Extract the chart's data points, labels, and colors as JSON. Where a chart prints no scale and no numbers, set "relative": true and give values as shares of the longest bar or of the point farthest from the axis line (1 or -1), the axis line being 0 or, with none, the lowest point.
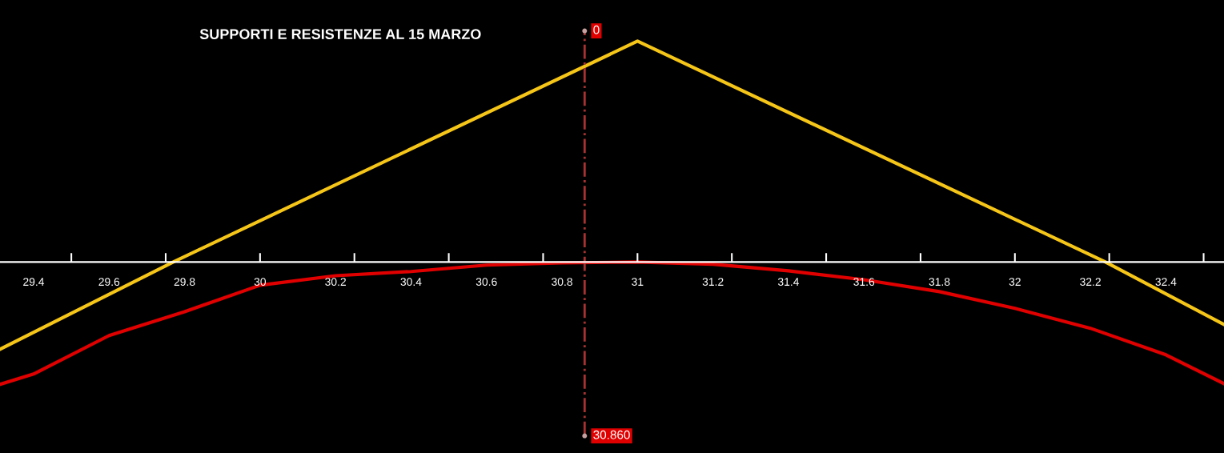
{
  "chart_data": {
    "type": "line",
    "title": "SUPPORTI E RESISTENZE AL 15 MARZO",
    "relative": true,
    "xlim": [
      29.311,
      32.554
    ],
    "xticks": [
      {
        "value": 29.4,
        "label": "29.4"
      },
      {
        "value": 29.6,
        "label": "29.6"
      },
      {
        "value": 29.8,
        "label": "29.8"
      },
      {
        "value": 30,
        "label": "30"
      },
      {
        "value": 30.2,
        "label": "30.2"
      },
      {
        "value": 30.4,
        "label": "30.4"
      },
      {
        "value": 30.6,
        "label": "30.6"
      },
      {
        "value": 30.8,
        "label": "30.8"
      },
      {
        "value": 31,
        "label": "31"
      },
      {
        "value": 31.2,
        "label": "31.2"
      },
      {
        "value": 31.4,
        "label": "31.4"
      },
      {
        "value": 31.6,
        "label": "31.6"
      },
      {
        "value": 31.8,
        "label": "31.8"
      },
      {
        "value": 32,
        "label": "32"
      },
      {
        "value": 32.2,
        "label": "32.2"
      },
      {
        "value": 32.4,
        "label": "32.4"
      },
      {
        "value": 29.5,
        "label": null
      },
      {
        "value": 29.75,
        "label": null
      },
      {
        "value": 30,
        "label": null
      },
      {
        "value": 30.25,
        "label": null
      },
      {
        "value": 30.5,
        "label": null
      },
      {
        "value": 30.75,
        "label": null
      },
      {
        "value": 31,
        "label": null
      },
      {
        "value": 31.25,
        "label": null
      },
      {
        "value": 31.5,
        "label": null
      },
      {
        "value": 31.75,
        "label": null
      },
      {
        "value": 32,
        "label": null
      },
      {
        "value": 32.25,
        "label": null
      },
      {
        "value": 32.5,
        "label": null
      }
    ],
    "series": [
      {
        "color": "#f5c518",
        "x": [
          29.311,
          29.77,
          31,
          32.24,
          32.554
        ],
        "values": [
          -0.395,
          0,
          1,
          0,
          -0.283
        ]
      },
      {
        "color": "#e00000",
        "x": [
          29.311,
          29.4,
          29.6,
          29.8,
          30,
          30.2,
          30.4,
          30.6,
          30.8,
          31,
          31.2,
          31.4,
          31.6,
          31.8,
          32,
          32.2,
          32.4,
          32.554
        ],
        "values": [
          -0.554,
          -0.507,
          -0.333,
          -0.225,
          -0.105,
          -0.062,
          -0.043,
          -0.014,
          -0.004,
          0,
          -0.01,
          -0.04,
          -0.08,
          -0.134,
          -0.21,
          -0.3,
          -0.42,
          -0.551
        ]
      }
    ],
    "ref_lines": [
      {
        "axis": "x",
        "value": 30.86,
        "label": "30.860",
        "color": "#a83232",
        "line_style": "dashdot"
      }
    ],
    "annotations": [
      "0"
    ],
    "grid": false,
    "legend": false
  }
}
